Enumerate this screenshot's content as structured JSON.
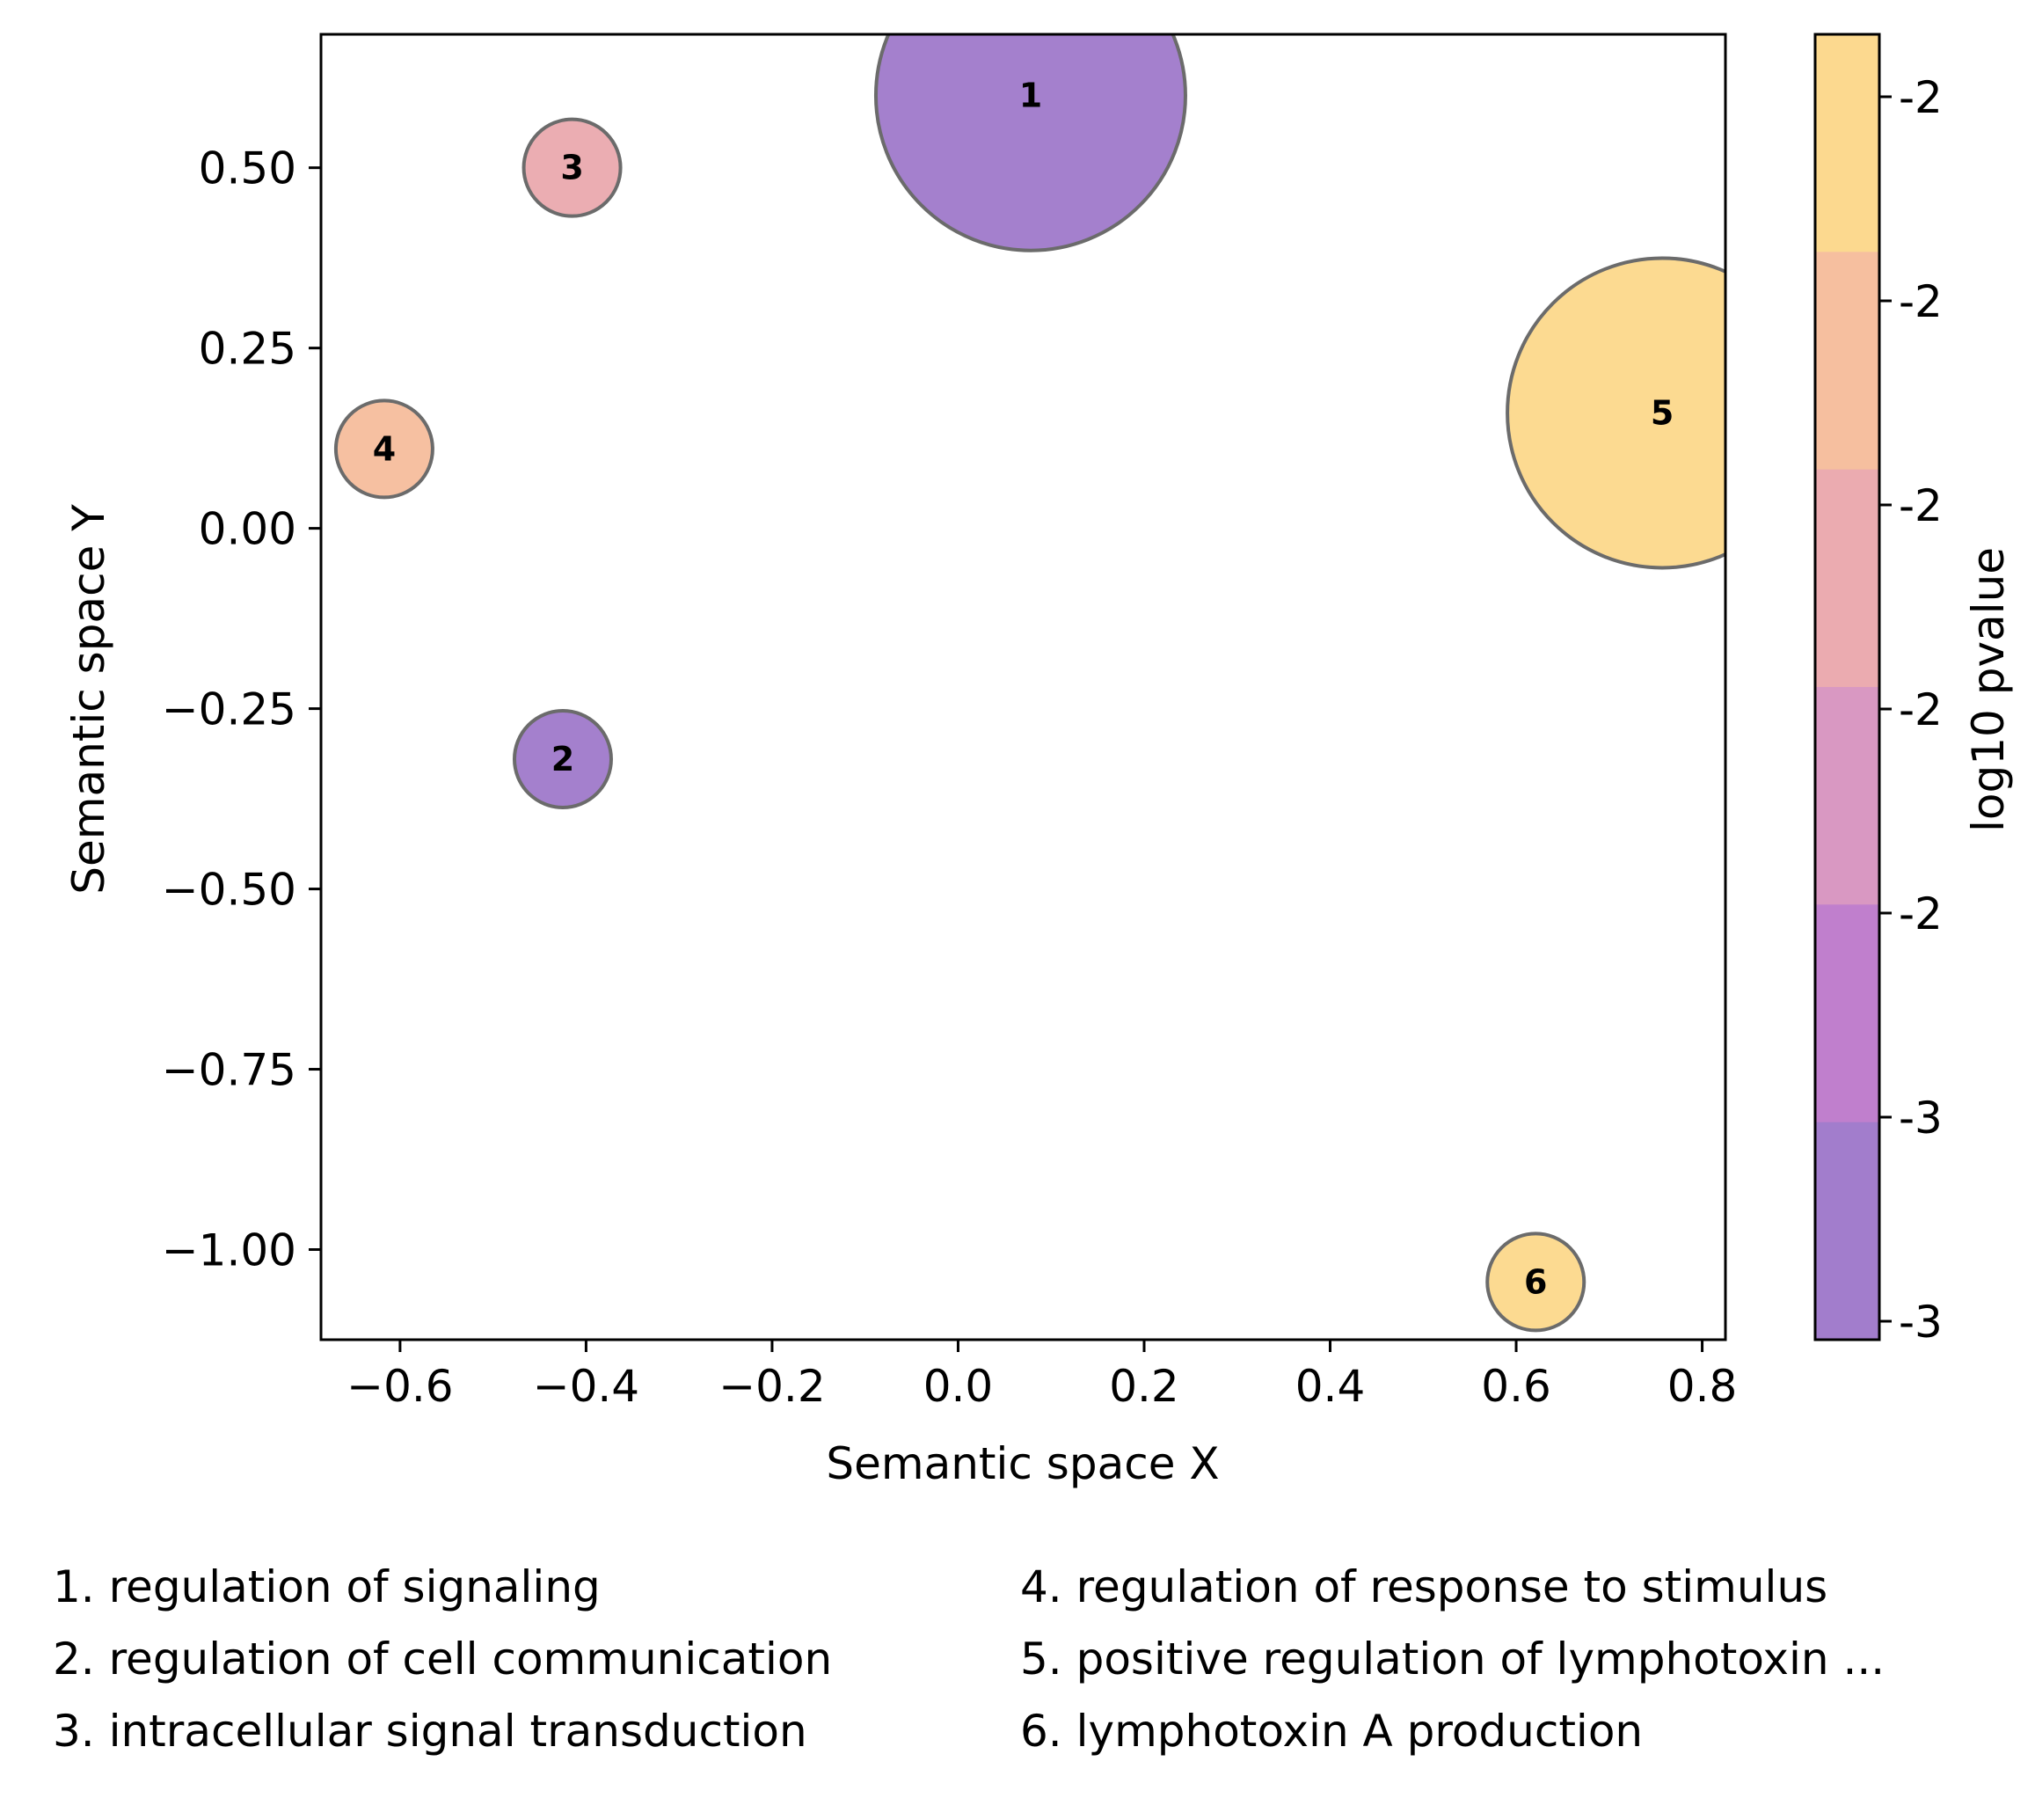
{
  "chart_data": {
    "type": "scatter",
    "xlabel": "Semantic space X",
    "ylabel": "Semantic space Y",
    "xlim": [
      -0.685,
      0.825
    ],
    "ylim": [
      -1.125,
      0.685
    ],
    "x_ticks": [
      -0.6,
      -0.4,
      -0.2,
      0.0,
      0.2,
      0.4,
      0.6,
      0.8
    ],
    "x_tick_labels": [
      "−0.6",
      "−0.4",
      "−0.2",
      "0.0",
      "0.2",
      "0.4",
      "0.6",
      "0.8"
    ],
    "y_ticks": [
      0.5,
      0.25,
      0.0,
      -0.25,
      -0.5,
      -0.75,
      -1.0
    ],
    "y_tick_labels": [
      "0.50",
      "0.25",
      "0.00",
      "−0.25",
      "−0.50",
      "−0.75",
      "−1.00"
    ],
    "grid": false,
    "points": [
      {
        "id": "1",
        "x": 0.078,
        "y": 0.6,
        "relative_size": 3.2,
        "color": "#a27dcc"
      },
      {
        "id": "2",
        "x": -0.425,
        "y": -0.32,
        "relative_size": 1.0,
        "color": "#a27dcc"
      },
      {
        "id": "3",
        "x": -0.415,
        "y": 0.5,
        "relative_size": 1.0,
        "color": "#ebabb0"
      },
      {
        "id": "4",
        "x": -0.617,
        "y": 0.11,
        "relative_size": 1.0,
        "color": "#f6bf9f"
      },
      {
        "id": "5",
        "x": 0.757,
        "y": 0.16,
        "relative_size": 3.2,
        "color": "#fcd98f"
      },
      {
        "id": "6",
        "x": 0.621,
        "y": -1.045,
        "relative_size": 1.0,
        "color": "#fcd98f"
      }
    ],
    "colorbar": {
      "label": "log10 pvalue",
      "tick_labels": [
        "-2",
        "-2",
        "-2",
        "-2",
        "-2",
        "-3",
        "-3"
      ],
      "colors": [
        "#fcd98f",
        "#f6bf9f",
        "#ebabb0",
        "#d998c2",
        "#c07fcd",
        "#a27dcc"
      ]
    },
    "legend": [
      "1. regulation of signaling",
      "2. regulation of cell communication",
      "3. intracellular signal transduction",
      "4. regulation of response to stimulus",
      "5. positive regulation of lymphotoxin ...",
      "6. lymphotoxin A production"
    ]
  }
}
